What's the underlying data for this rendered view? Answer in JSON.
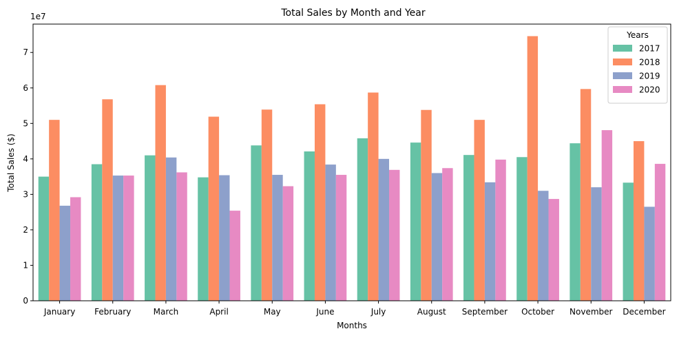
{
  "chart_data": {
    "type": "bar",
    "title": "Total Sales by Month and Year",
    "xlabel": "Months",
    "ylabel": "Total Sales ($)",
    "y_offset_text": "1e7",
    "ylim": [
      0,
      78000000
    ],
    "yticks": [
      0,
      10000000,
      20000000,
      30000000,
      40000000,
      50000000,
      60000000,
      70000000
    ],
    "ytick_labels": [
      "0",
      "1",
      "2",
      "3",
      "4",
      "5",
      "6",
      "7"
    ],
    "grid": false,
    "legend": {
      "title": "Years",
      "position": "top-right"
    },
    "categories": [
      "January",
      "February",
      "March",
      "April",
      "May",
      "June",
      "July",
      "August",
      "September",
      "October",
      "November",
      "December"
    ],
    "series": [
      {
        "name": "2017",
        "color": "#66c2a5",
        "values": [
          35000000,
          38500000,
          41000000,
          34800000,
          43800000,
          42100000,
          45800000,
          44600000,
          41100000,
          40500000,
          44400000,
          33300000
        ]
      },
      {
        "name": "2018",
        "color": "#fc8d62",
        "values": [
          51000000,
          56800000,
          60800000,
          51900000,
          53900000,
          55400000,
          58700000,
          53800000,
          51000000,
          74600000,
          59700000,
          45000000
        ]
      },
      {
        "name": "2019",
        "color": "#8da0cb",
        "values": [
          26800000,
          35300000,
          40400000,
          35400000,
          35500000,
          38400000,
          40000000,
          36000000,
          33400000,
          31000000,
          32000000,
          26500000
        ]
      },
      {
        "name": "2020",
        "color": "#e78ac3",
        "values": [
          29200000,
          35300000,
          36200000,
          25400000,
          32300000,
          35500000,
          36900000,
          37400000,
          39800000,
          28700000,
          48100000,
          38600000
        ]
      }
    ]
  }
}
